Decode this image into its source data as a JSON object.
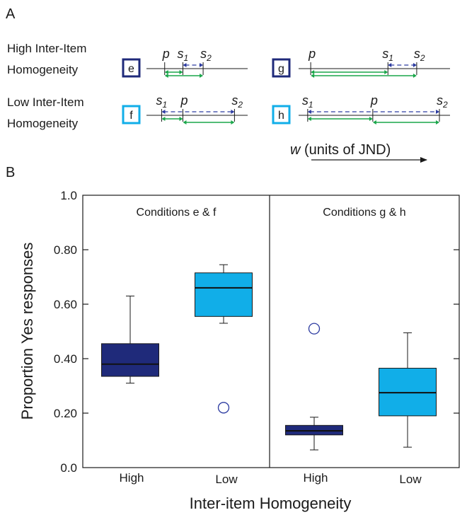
{
  "colors": {
    "high": "#1f2a7a",
    "low": "#11aee8",
    "green": "#1aa64a",
    "dashed": "#2b3aa0",
    "ink": "#1a1a1a"
  },
  "panelA": {
    "label": "A",
    "rows": [
      {
        "label1": "High Inter-Item",
        "label2": "Homogeneity",
        "kind": "high",
        "conditions": [
          {
            "tag": "e",
            "p": 0.18,
            "s1": 0.36,
            "s2": 0.56
          },
          {
            "tag": "g",
            "p": 0.08,
            "s1": 0.59,
            "s2": 0.78
          }
        ]
      },
      {
        "label1": "Low Inter-Item",
        "label2": "Homogeneity",
        "kind": "low",
        "conditions": [
          {
            "tag": "f",
            "p": 0.36,
            "s1": 0.15,
            "s2": 0.87
          },
          {
            "tag": "h",
            "p": 0.49,
            "s1": 0.06,
            "s2": 0.93
          }
        ]
      }
    ],
    "axis_prefix": "w",
    "axis_text": " (units of JND)",
    "markers": {
      "p": "p",
      "s": "s",
      "sub1": "1",
      "sub2": "2"
    }
  },
  "panelB": {
    "label": "B"
  },
  "chart_data": {
    "type": "box",
    "ylabel": "Proportion Yes  responses",
    "xlabel": "Inter-item Homogeneity",
    "ylim": [
      0,
      1
    ],
    "yticks": [
      "0.0",
      "0.20",
      "0.40",
      "0.60",
      "0.80",
      "1.0"
    ],
    "groups": [
      {
        "title": "Conditions e & f",
        "boxes": [
          {
            "category": "High",
            "kind": "high",
            "whisker_low": 0.31,
            "q1": 0.335,
            "median": 0.38,
            "q3": 0.455,
            "whisker_high": 0.63,
            "outliers": []
          },
          {
            "category": "Low",
            "kind": "low",
            "whisker_low": 0.53,
            "q1": 0.555,
            "median": 0.66,
            "q3": 0.715,
            "whisker_high": 0.745,
            "outliers": [
              0.22
            ]
          }
        ]
      },
      {
        "title": "Conditions g & h",
        "boxes": [
          {
            "category": "High",
            "kind": "high",
            "whisker_low": 0.065,
            "q1": 0.12,
            "median": 0.135,
            "q3": 0.155,
            "whisker_high": 0.185,
            "outliers": [
              0.51
            ]
          },
          {
            "category": "Low",
            "kind": "low",
            "whisker_low": 0.075,
            "q1": 0.19,
            "median": 0.275,
            "q3": 0.365,
            "whisker_high": 0.495,
            "outliers": []
          }
        ]
      }
    ]
  }
}
